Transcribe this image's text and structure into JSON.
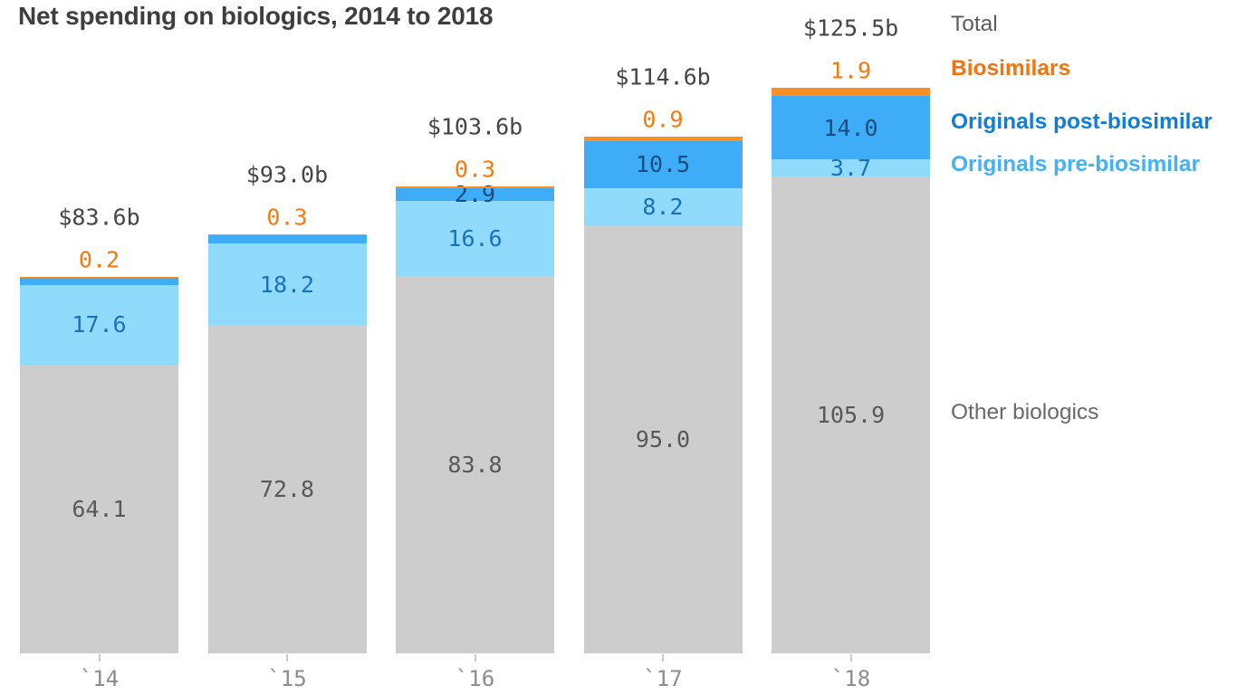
{
  "chart_data": {
    "type": "bar",
    "subtype": "stacked-column",
    "title": "Net spending on biologics, 2014 to 2018",
    "categories": [
      "`14",
      "`15",
      "`16",
      "`17",
      "`18"
    ],
    "totals": [
      "$83.6b",
      "$93.0b",
      "$103.6b",
      "$114.6b",
      "$125.5b"
    ],
    "total_values": [
      83.6,
      93.0,
      103.6,
      114.6,
      125.5
    ],
    "biosimilar_top_labels": [
      "0.2",
      "0.3",
      "0.3",
      "0.9",
      "1.9"
    ],
    "series": [
      {
        "name": "Other biologics",
        "color": "#cdcdcd",
        "label_color": "#58585a",
        "values": [
          64.1,
          72.8,
          83.8,
          95.0,
          105.9
        ],
        "labels": [
          "64.1",
          "72.8",
          "83.8",
          "95.0",
          "105.9"
        ]
      },
      {
        "name": "Originals pre-biosimilar",
        "color": "#90dbfb",
        "label_color": "#1b70be",
        "values": [
          17.6,
          18.2,
          16.6,
          8.2,
          3.7
        ],
        "labels": [
          "17.6",
          "18.2",
          "16.6",
          "8.2",
          "3.7"
        ]
      },
      {
        "name": "Originals post-biosimilar",
        "color": "#3facf7",
        "label_color": "#174d80",
        "values": [
          1.7,
          1.7,
          2.9,
          10.5,
          14.0
        ],
        "labels": [
          "",
          "",
          "2.9",
          "10.5",
          "14.0"
        ]
      },
      {
        "name": "Biosimilars",
        "color": "#fa8e27",
        "label_color": "#f5790f",
        "values": [
          0.2,
          0.3,
          0.3,
          0.9,
          1.9
        ],
        "labels": [
          "",
          "",
          "",
          "",
          ""
        ]
      }
    ],
    "legend": [
      {
        "label": "Total",
        "color": "#5a5b5d"
      },
      {
        "label": "Biosimilars",
        "color": "#f4730c"
      },
      {
        "label": "Originals post-biosimilar",
        "color": "#0f7ed9"
      },
      {
        "label": "Originals pre-biosimilar",
        "color": "#41b1f8"
      },
      {
        "label": "Other biologics",
        "color": "#69696b"
      }
    ],
    "layout_hints": {
      "legend_position": "right",
      "grid": false,
      "y_axis_shown": false,
      "value_scale": "billions of dollars"
    }
  }
}
